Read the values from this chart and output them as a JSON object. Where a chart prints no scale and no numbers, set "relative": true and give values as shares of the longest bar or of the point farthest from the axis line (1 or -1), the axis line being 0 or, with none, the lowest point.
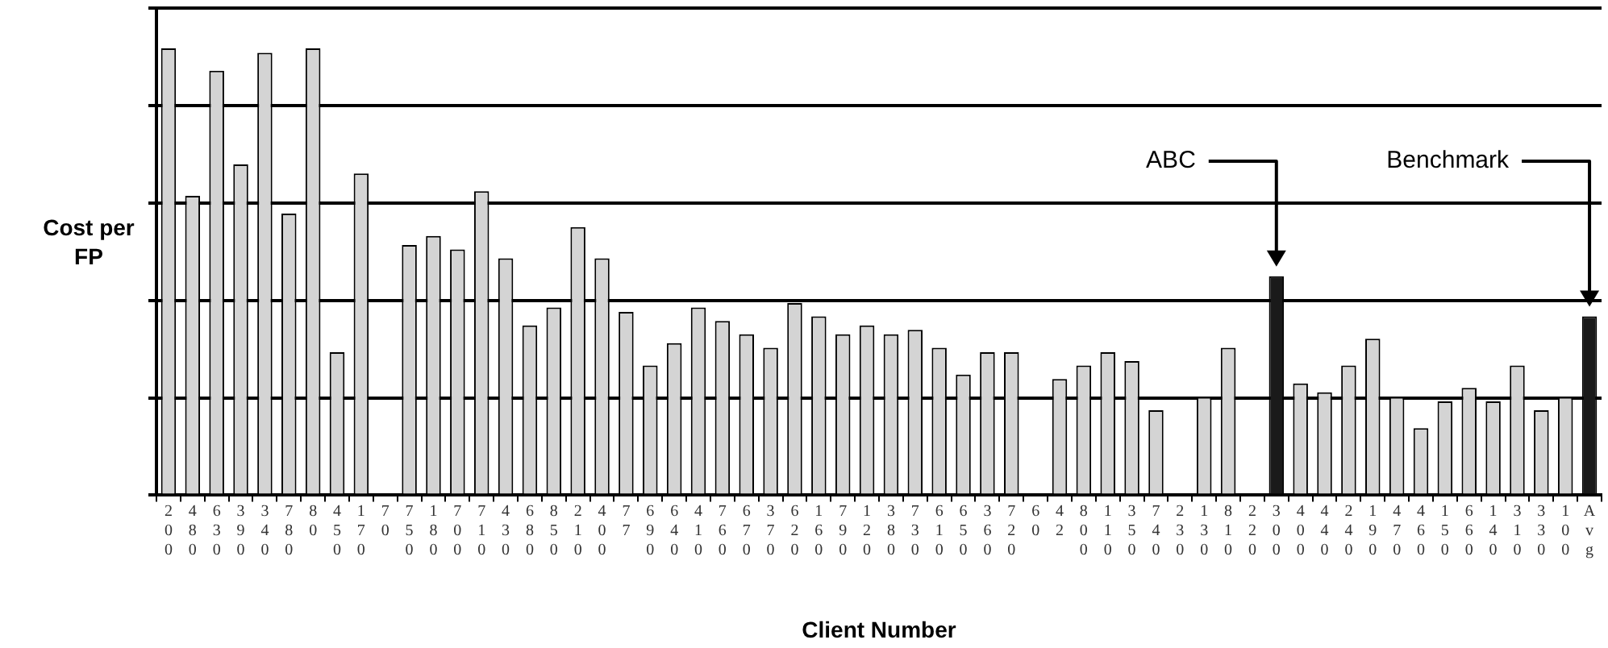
{
  "chart_data": {
    "type": "bar",
    "xlabel": "Client Number",
    "ylabel": "Cost per FP",
    "relative": true,
    "grid": "y",
    "legend": false,
    "categories": [
      "200",
      "480",
      "630",
      "390",
      "340",
      "780",
      "80",
      "450",
      "170",
      "70",
      "750",
      "180",
      "700",
      "710",
      "430",
      "680",
      "850",
      "210",
      "400",
      "77",
      "690",
      "640",
      "410",
      "760",
      "670",
      "370",
      "620",
      "160",
      "790",
      "120",
      "380",
      "730",
      "610",
      "650",
      "360",
      "720",
      "60",
      "42",
      "800",
      "110",
      "350",
      "740",
      "230",
      "130",
      "810",
      "220",
      "300",
      "400",
      "440",
      "240",
      "190",
      "470",
      "460",
      "150",
      "660",
      "140",
      "310",
      "330",
      "100",
      "Avg"
    ],
    "values": [
      1.0,
      0.67,
      0.95,
      0.74,
      0.99,
      0.63,
      1.0,
      0.32,
      0.72,
      null,
      0.56,
      0.58,
      0.55,
      0.68,
      0.53,
      0.38,
      0.42,
      0.6,
      0.53,
      0.41,
      0.29,
      0.34,
      0.42,
      0.39,
      0.36,
      0.33,
      0.43,
      0.4,
      0.36,
      0.38,
      0.36,
      0.37,
      0.33,
      0.27,
      0.32,
      0.32,
      null,
      0.26,
      0.29,
      0.32,
      0.3,
      0.19,
      null,
      0.22,
      0.33,
      null,
      0.49,
      0.25,
      0.23,
      0.29,
      0.35,
      0.22,
      0.15,
      0.21,
      0.24,
      0.21,
      0.29,
      0.19,
      0.22,
      0.4
    ],
    "colors": [
      "#d4d4d4",
      "#d4d4d4",
      "#d4d4d4",
      "#d4d4d4",
      "#d4d4d4",
      "#d4d4d4",
      "#d4d4d4",
      "#d4d4d4",
      "#d4d4d4",
      "#d4d4d4",
      "#d4d4d4",
      "#d4d4d4",
      "#d4d4d4",
      "#d4d4d4",
      "#d4d4d4",
      "#d4d4d4",
      "#d4d4d4",
      "#d4d4d4",
      "#d4d4d4",
      "#d4d4d4",
      "#d4d4d4",
      "#d4d4d4",
      "#d4d4d4",
      "#d4d4d4",
      "#d4d4d4",
      "#d4d4d4",
      "#d4d4d4",
      "#d4d4d4",
      "#d4d4d4",
      "#d4d4d4",
      "#d4d4d4",
      "#d4d4d4",
      "#d4d4d4",
      "#d4d4d4",
      "#d4d4d4",
      "#d4d4d4",
      "#d4d4d4",
      "#d4d4d4",
      "#d4d4d4",
      "#d4d4d4",
      "#d4d4d4",
      "#d4d4d4",
      "#d4d4d4",
      "#d4d4d4",
      "#d4d4d4",
      "#d4d4d4",
      "#1a1a1a",
      "#d4d4d4",
      "#d4d4d4",
      "#d4d4d4",
      "#d4d4d4",
      "#d4d4d4",
      "#d4d4d4",
      "#d4d4d4",
      "#d4d4d4",
      "#d4d4d4",
      "#d4d4d4",
      "#d4d4d4",
      "#d4d4d4",
      "#1a1a1a"
    ],
    "annotations": [
      "ABC",
      "Benchmark"
    ]
  }
}
